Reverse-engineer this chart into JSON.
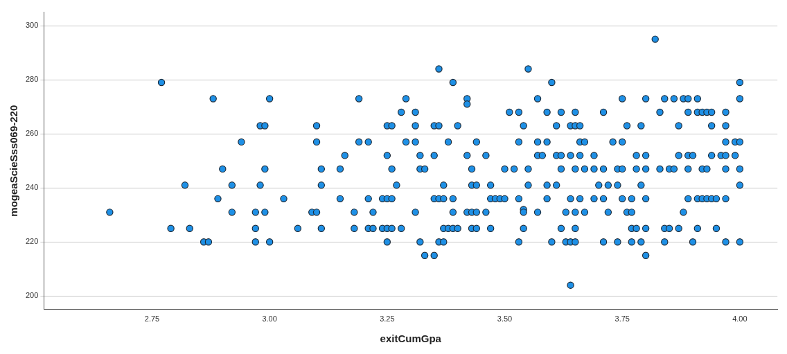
{
  "chart_data": {
    "type": "scatter",
    "xlabel": "exitCumGpa",
    "ylabel": "mogeaScieSss069-220",
    "color": "#1e90e6",
    "marker": "circle",
    "grid": "y",
    "xlim": [
      2.52,
      4.08
    ],
    "ylim": [
      195,
      305
    ],
    "xticks": [
      {
        "value": 2.75,
        "label": "2.75"
      },
      {
        "value": 3,
        "label": "3.00"
      },
      {
        "value": 3.25,
        "label": "3.25"
      },
      {
        "value": 3.5,
        "label": "3.50"
      },
      {
        "value": 3.75,
        "label": "3.75"
      },
      {
        "value": 4,
        "label": "4.00"
      }
    ],
    "yticks": [
      200,
      220,
      240,
      260,
      280,
      300
    ],
    "x": [
      2.66,
      2.77,
      2.88,
      2.82,
      2.79,
      2.83,
      2.86,
      2.87,
      2.89,
      3.0,
      2.98,
      2.99,
      3.1,
      2.94,
      3.1,
      2.9,
      2.99,
      3.11,
      2.92,
      2.98,
      3.11,
      3.03,
      2.92,
      2.97,
      2.99,
      3.09,
      3.1,
      2.97,
      3.06,
      3.11,
      2.97,
      3.0,
      3.19,
      3.29,
      3.28,
      3.31,
      3.25,
      3.26,
      3.31,
      3.19,
      3.21,
      3.29,
      3.31,
      3.16,
      3.25,
      3.32,
      3.15,
      3.26,
      3.32,
      3.27,
      3.15,
      3.21,
      3.24,
      3.25,
      3.26,
      3.18,
      3.22,
      3.31,
      3.18,
      3.21,
      3.22,
      3.24,
      3.25,
      3.26,
      3.28,
      3.25,
      3.32,
      3.33,
      3.35,
      3.36,
      3.39,
      3.42,
      3.42,
      3.51,
      3.35,
      3.36,
      3.4,
      3.38,
      3.44,
      3.35,
      3.42,
      3.46,
      3.33,
      3.43,
      3.5,
      3.37,
      3.43,
      3.44,
      3.47,
      3.35,
      3.36,
      3.37,
      3.39,
      3.47,
      3.48,
      3.49,
      3.5,
      3.39,
      3.42,
      3.43,
      3.44,
      3.46,
      3.37,
      3.38,
      3.39,
      3.4,
      3.43,
      3.44,
      3.47,
      3.36,
      3.37,
      3.55,
      3.6,
      3.57,
      3.53,
      3.59,
      3.62,
      3.65,
      3.54,
      3.61,
      3.64,
      3.65,
      3.66,
      3.53,
      3.57,
      3.59,
      3.66,
      3.67,
      3.57,
      3.58,
      3.61,
      3.62,
      3.64,
      3.66,
      3.52,
      3.55,
      3.62,
      3.65,
      3.67,
      3.69,
      3.55,
      3.59,
      3.61,
      3.53,
      3.59,
      3.64,
      3.66,
      3.54,
      3.54,
      3.57,
      3.63,
      3.65,
      3.67,
      3.54,
      3.62,
      3.65,
      3.53,
      3.6,
      3.63,
      3.64,
      3.65,
      3.64,
      3.75,
      3.71,
      3.76,
      3.79,
      3.73,
      3.75,
      3.69,
      3.78,
      3.71,
      3.74,
      3.75,
      3.78,
      3.7,
      3.72,
      3.74,
      3.79,
      3.69,
      3.71,
      3.75,
      3.77,
      3.72,
      3.76,
      3.77,
      3.77,
      3.78,
      3.71,
      3.74,
      3.77,
      3.79,
      3.82,
      4.0,
      3.8,
      3.84,
      3.86,
      3.88,
      3.89,
      3.91,
      4.0,
      3.83,
      3.89,
      3.91,
      3.92,
      3.93,
      3.94,
      3.97,
      3.87,
      3.94,
      3.97,
      3.97,
      3.99,
      4.0,
      3.8,
      3.87,
      3.89,
      3.9,
      3.94,
      3.96,
      3.97,
      3.99,
      3.8,
      3.83,
      3.85,
      3.86,
      3.89,
      3.92,
      3.93,
      3.97,
      4.0,
      4.0,
      3.8,
      3.89,
      3.91,
      3.92,
      3.93,
      3.94,
      3.95,
      3.97,
      3.88,
      3.8,
      3.84,
      3.85,
      3.87,
      3.91,
      3.95,
      3.84,
      3.9,
      3.97,
      4.0,
      3.8
    ],
    "values": [
      231,
      279,
      273,
      241,
      225,
      225,
      220,
      220,
      236,
      273,
      263,
      263,
      263,
      257,
      257,
      247,
      247,
      247,
      241,
      241,
      241,
      236,
      231,
      231,
      231,
      231,
      231,
      225,
      225,
      225,
      220,
      220,
      273,
      273,
      268,
      268,
      263,
      263,
      263,
      257,
      257,
      257,
      257,
      252,
      252,
      252,
      247,
      247,
      247,
      241,
      236,
      236,
      236,
      236,
      236,
      231,
      231,
      231,
      225,
      225,
      225,
      225,
      225,
      225,
      225,
      220,
      220,
      215,
      215,
      284,
      279,
      273,
      271,
      268,
      263,
      263,
      263,
      257,
      257,
      252,
      252,
      252,
      247,
      247,
      247,
      241,
      241,
      241,
      241,
      236,
      236,
      236,
      236,
      236,
      236,
      236,
      236,
      231,
      231,
      231,
      231,
      231,
      225,
      225,
      225,
      225,
      225,
      225,
      225,
      220,
      220,
      284,
      279,
      273,
      268,
      268,
      268,
      268,
      263,
      263,
      263,
      263,
      263,
      257,
      257,
      257,
      257,
      257,
      252,
      252,
      252,
      252,
      252,
      252,
      247,
      247,
      247,
      247,
      247,
      247,
      241,
      241,
      241,
      236,
      236,
      236,
      236,
      232,
      231,
      231,
      231,
      231,
      231,
      225,
      225,
      225,
      220,
      220,
      220,
      220,
      220,
      204,
      273,
      268,
      263,
      263,
      257,
      257,
      252,
      252,
      247,
      247,
      247,
      247,
      241,
      241,
      241,
      241,
      236,
      236,
      236,
      236,
      231,
      231,
      231,
      225,
      225,
      220,
      220,
      220,
      220,
      295,
      279,
      273,
      273,
      273,
      273,
      273,
      273,
      273,
      268,
      268,
      268,
      268,
      268,
      268,
      268,
      263,
      263,
      263,
      257,
      257,
      257,
      252,
      252,
      252,
      252,
      252,
      252,
      252,
      252,
      247,
      247,
      247,
      247,
      247,
      247,
      247,
      247,
      247,
      241,
      236,
      236,
      236,
      236,
      236,
      236,
      236,
      236,
      231,
      225,
      225,
      225,
      225,
      225,
      225,
      220,
      220,
      220,
      220,
      215
    ]
  }
}
